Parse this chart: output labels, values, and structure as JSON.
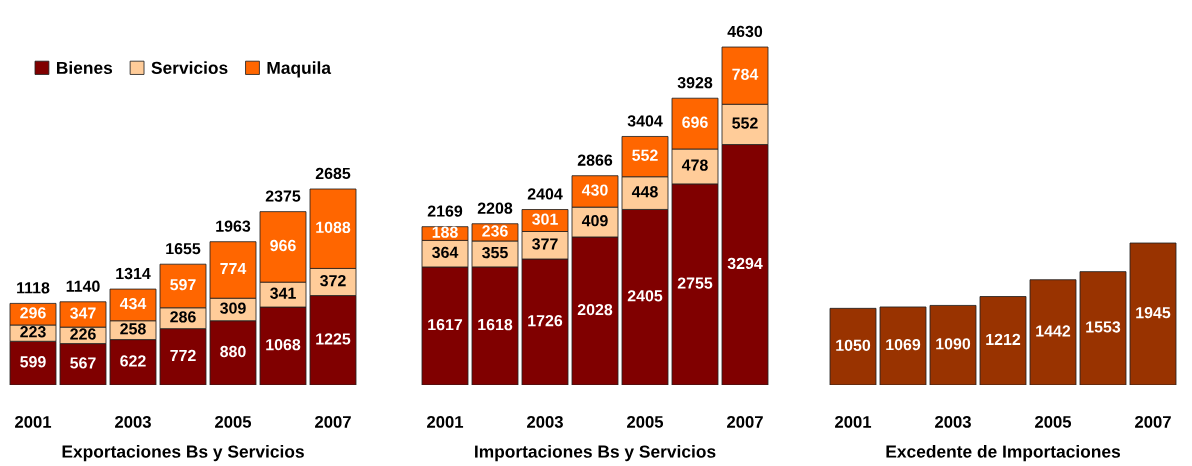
{
  "chart_data": [
    {
      "type": "bar",
      "stacked": true,
      "xlabel": "Exportaciones Bs y Servicios",
      "categories": [
        "2001",
        null,
        "2003",
        null,
        "2005",
        null,
        "2007"
      ],
      "tick_labels": "x",
      "data_labels": true,
      "legend": "top",
      "series": [
        {
          "name": "Bienes",
          "color": "#800000",
          "values": [
            599,
            567,
            622,
            772,
            880,
            1068,
            1225
          ]
        },
        {
          "name": "Servicios",
          "color": "#ffcc99",
          "values": [
            223,
            226,
            258,
            286,
            309,
            341,
            372
          ]
        },
        {
          "name": "Maquila",
          "color": "#ff6600",
          "values": [
            296,
            347,
            434,
            597,
            774,
            966,
            1088
          ]
        }
      ],
      "totals": [
        "1118",
        "1140",
        "1314",
        "1655",
        "1963",
        "2375",
        "2685"
      ]
    },
    {
      "type": "bar",
      "stacked": true,
      "xlabel": "Importaciones Bs y Servicios",
      "categories": [
        "2001",
        null,
        "2003",
        null,
        "2005",
        null,
        "2007"
      ],
      "tick_labels": "x",
      "data_labels": true,
      "series": [
        {
          "color": "#800000",
          "values": [
            1617,
            1618,
            1726,
            2028,
            2405,
            2755,
            3294
          ]
        },
        {
          "color": "#ffcc99",
          "values": [
            364,
            355,
            377,
            409,
            448,
            478,
            552
          ]
        },
        {
          "color": "#ff6600",
          "values": [
            188,
            236,
            301,
            430,
            552,
            696,
            784
          ]
        }
      ],
      "totals": [
        "2169",
        "2208",
        "2404",
        "2866",
        "3404",
        "3928",
        "4630"
      ]
    },
    {
      "type": "bar",
      "xlabel": "Excedente de Importaciones",
      "categories": [
        "2001",
        null,
        "2003",
        null,
        "2005",
        null,
        "2007"
      ],
      "tick_labels": "x",
      "data_labels": true,
      "series": [
        {
          "color": "#993300",
          "values": [
            1050,
            1069,
            1090,
            1212,
            1442,
            1553,
            1945
          ]
        }
      ]
    }
  ]
}
